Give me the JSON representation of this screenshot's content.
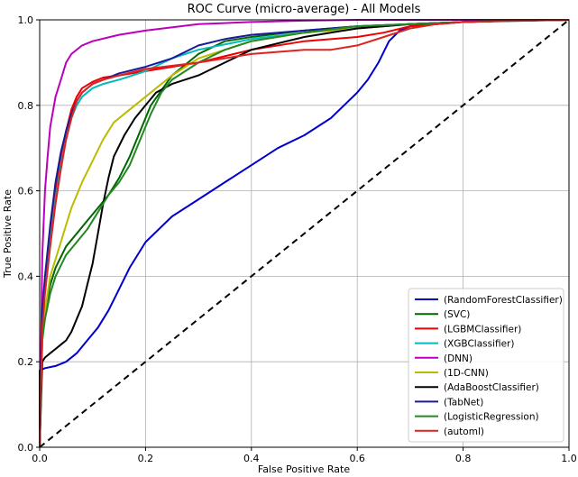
{
  "chart_data": {
    "type": "line",
    "title": "ROC Curve (micro-average) - All Models",
    "xlabel": "False Positive Rate",
    "ylabel": "True Positive Rate",
    "xlim": [
      0.0,
      1.0
    ],
    "ylim": [
      0.0,
      1.0
    ],
    "xticks": [
      "0.0",
      "0.2",
      "0.4",
      "0.6",
      "0.8",
      "1.0"
    ],
    "yticks": [
      "0.0",
      "0.2",
      "0.4",
      "0.6",
      "0.8",
      "1.0"
    ],
    "grid": true,
    "legend_position": "lower-right",
    "series": [
      {
        "name": "(RandomForestClassifier)",
        "color": "#0000cc",
        "x": [
          0,
          0,
          0.01,
          0.03,
          0.05,
          0.07,
          0.09,
          0.11,
          0.13,
          0.15,
          0.17,
          0.2,
          0.25,
          0.3,
          0.35,
          0.4,
          0.45,
          0.5,
          0.55,
          0.6,
          0.62,
          0.64,
          0.66,
          0.68,
          0.7,
          0.75,
          0.8,
          0.9,
          1.0
        ],
        "y": [
          0,
          0.18,
          0.185,
          0.19,
          0.2,
          0.22,
          0.25,
          0.28,
          0.32,
          0.37,
          0.42,
          0.48,
          0.54,
          0.58,
          0.62,
          0.66,
          0.7,
          0.73,
          0.77,
          0.83,
          0.86,
          0.9,
          0.95,
          0.975,
          0.985,
          0.99,
          0.995,
          0.998,
          1.0
        ]
      },
      {
        "name": "(SVC)",
        "color": "#006600",
        "x": [
          0,
          0.005,
          0.01,
          0.02,
          0.03,
          0.05,
          0.07,
          0.09,
          0.11,
          0.13,
          0.15,
          0.17,
          0.19,
          0.21,
          0.25,
          0.3,
          0.35,
          0.4,
          0.5,
          0.6,
          0.7,
          0.8,
          0.9,
          1.0
        ],
        "y": [
          0,
          0.26,
          0.32,
          0.38,
          0.42,
          0.47,
          0.5,
          0.53,
          0.56,
          0.59,
          0.63,
          0.68,
          0.74,
          0.8,
          0.87,
          0.92,
          0.95,
          0.96,
          0.975,
          0.985,
          0.99,
          0.995,
          0.998,
          1.0
        ]
      },
      {
        "name": "(LGBMClassifier)",
        "color": "#ee0000",
        "x": [
          0,
          0.005,
          0.01,
          0.02,
          0.03,
          0.04,
          0.05,
          0.06,
          0.07,
          0.08,
          0.1,
          0.12,
          0.15,
          0.2,
          0.3,
          0.4,
          0.5,
          0.6,
          0.65,
          0.7,
          0.8,
          1.0
        ],
        "y": [
          0,
          0.3,
          0.38,
          0.5,
          0.6,
          0.68,
          0.74,
          0.79,
          0.82,
          0.84,
          0.855,
          0.865,
          0.87,
          0.88,
          0.9,
          0.93,
          0.95,
          0.96,
          0.97,
          0.985,
          0.995,
          1.0
        ]
      },
      {
        "name": "(XGBClassifier)",
        "color": "#00bbbb",
        "x": [
          0,
          0.005,
          0.01,
          0.02,
          0.03,
          0.04,
          0.05,
          0.06,
          0.07,
          0.08,
          0.1,
          0.12,
          0.15,
          0.2,
          0.25,
          0.3,
          0.4,
          0.5,
          0.6,
          0.7,
          0.8,
          1.0
        ],
        "y": [
          0,
          0.3,
          0.37,
          0.48,
          0.58,
          0.66,
          0.72,
          0.77,
          0.8,
          0.82,
          0.84,
          0.85,
          0.86,
          0.88,
          0.91,
          0.93,
          0.955,
          0.97,
          0.98,
          0.99,
          0.995,
          1.0
        ]
      },
      {
        "name": "(DNN)",
        "color": "#bb00bb",
        "x": [
          0,
          0.005,
          0.01,
          0.015,
          0.02,
          0.03,
          0.04,
          0.05,
          0.06,
          0.08,
          0.1,
          0.15,
          0.2,
          0.3,
          0.4,
          0.5,
          0.6,
          0.7,
          0.8,
          1.0
        ],
        "y": [
          0,
          0.45,
          0.6,
          0.68,
          0.75,
          0.82,
          0.86,
          0.9,
          0.92,
          0.94,
          0.95,
          0.965,
          0.975,
          0.99,
          0.995,
          0.998,
          1.0,
          1.0,
          1.0,
          1.0
        ]
      },
      {
        "name": "(1D-CNN)",
        "color": "#bbbb00",
        "x": [
          0,
          0.005,
          0.01,
          0.02,
          0.03,
          0.04,
          0.05,
          0.06,
          0.08,
          0.1,
          0.12,
          0.14,
          0.16,
          0.18,
          0.2,
          0.25,
          0.3,
          0.4,
          0.5,
          0.6,
          0.7,
          0.8,
          0.9,
          1.0
        ],
        "y": [
          0,
          0.25,
          0.32,
          0.4,
          0.44,
          0.48,
          0.52,
          0.56,
          0.62,
          0.67,
          0.72,
          0.76,
          0.78,
          0.8,
          0.82,
          0.87,
          0.91,
          0.95,
          0.97,
          0.98,
          0.99,
          0.995,
          0.998,
          1.0
        ]
      },
      {
        "name": "(AdaBoostClassifier)",
        "color": "#000000",
        "x": [
          0,
          0.005,
          0.01,
          0.02,
          0.03,
          0.04,
          0.05,
          0.06,
          0.07,
          0.08,
          0.09,
          0.1,
          0.11,
          0.12,
          0.13,
          0.14,
          0.16,
          0.18,
          0.2,
          0.22,
          0.25,
          0.3,
          0.35,
          0.4,
          0.5,
          0.6,
          0.7,
          0.8,
          0.9,
          1.0
        ],
        "y": [
          0,
          0.2,
          0.21,
          0.22,
          0.23,
          0.24,
          0.25,
          0.27,
          0.3,
          0.33,
          0.38,
          0.43,
          0.5,
          0.57,
          0.63,
          0.68,
          0.73,
          0.77,
          0.8,
          0.83,
          0.85,
          0.87,
          0.9,
          0.93,
          0.96,
          0.98,
          0.99,
          0.995,
          0.998,
          1.0
        ]
      },
      {
        "name": "(TabNet)",
        "color": "#1a1a99",
        "x": [
          0,
          0.005,
          0.01,
          0.02,
          0.03,
          0.04,
          0.05,
          0.06,
          0.07,
          0.08,
          0.1,
          0.12,
          0.15,
          0.2,
          0.25,
          0.3,
          0.35,
          0.4,
          0.5,
          0.6,
          0.7,
          0.8,
          0.9,
          1.0
        ],
        "y": [
          0,
          0.32,
          0.4,
          0.52,
          0.62,
          0.69,
          0.74,
          0.78,
          0.81,
          0.83,
          0.85,
          0.86,
          0.875,
          0.89,
          0.91,
          0.94,
          0.955,
          0.965,
          0.975,
          0.985,
          0.99,
          0.995,
          0.998,
          1.0
        ]
      },
      {
        "name": "(LogisticRegression)",
        "color": "#228822",
        "x": [
          0,
          0.005,
          0.01,
          0.02,
          0.03,
          0.05,
          0.07,
          0.09,
          0.11,
          0.13,
          0.15,
          0.17,
          0.19,
          0.21,
          0.23,
          0.25,
          0.3,
          0.35,
          0.4,
          0.5,
          0.6,
          0.7,
          0.8,
          0.9,
          1.0
        ],
        "y": [
          0,
          0.25,
          0.3,
          0.36,
          0.4,
          0.45,
          0.48,
          0.51,
          0.55,
          0.59,
          0.62,
          0.66,
          0.72,
          0.78,
          0.83,
          0.86,
          0.9,
          0.93,
          0.95,
          0.97,
          0.985,
          0.99,
          0.995,
          0.998,
          1.0
        ]
      },
      {
        "name": "(automl)",
        "color": "#dd2222",
        "x": [
          0,
          0.005,
          0.01,
          0.02,
          0.03,
          0.04,
          0.05,
          0.06,
          0.07,
          0.08,
          0.1,
          0.12,
          0.15,
          0.2,
          0.3,
          0.4,
          0.5,
          0.55,
          0.6,
          0.65,
          0.7,
          0.75,
          0.8,
          0.9,
          1.0
        ],
        "y": [
          0,
          0.28,
          0.36,
          0.47,
          0.57,
          0.65,
          0.72,
          0.77,
          0.81,
          0.83,
          0.85,
          0.86,
          0.87,
          0.885,
          0.9,
          0.92,
          0.93,
          0.93,
          0.94,
          0.96,
          0.98,
          0.99,
          0.995,
          0.998,
          1.0
        ]
      }
    ],
    "reference_line": {
      "x": [
        0,
        1
      ],
      "y": [
        0,
        1
      ],
      "color": "#000000",
      "style": "dashed"
    }
  }
}
